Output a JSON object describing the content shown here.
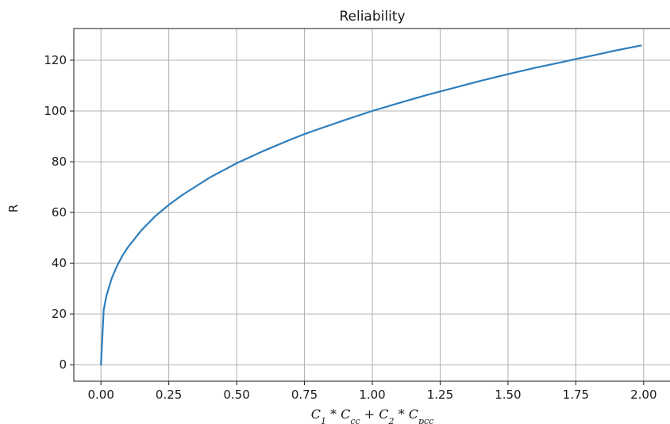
{
  "chart_data": {
    "type": "line",
    "title": "Reliability",
    "xlabel": "C_1 * C_cc + C_2 * C_pcc",
    "xlabel_parts": {
      "c1": "C",
      "c1_sub": "1",
      "op1": " * ",
      "ccc": "C",
      "ccc_sub": "cc",
      "op2": " + ",
      "c2": "C",
      "c2_sub": "2",
      "op3": " * ",
      "cpcc": "C",
      "cpcc_sub": "pcc"
    },
    "ylabel": "R",
    "xlim": [
      -0.1,
      2.1
    ],
    "ylim": [
      -6.5,
      132.5
    ],
    "xticks": [
      0.0,
      0.25,
      0.5,
      0.75,
      1.0,
      1.25,
      1.5,
      1.75,
      2.0
    ],
    "xtick_labels": [
      "0.00",
      "0.25",
      "0.50",
      "0.75",
      "1.00",
      "1.25",
      "1.50",
      "1.75",
      "2.00"
    ],
    "yticks": [
      0,
      20,
      40,
      60,
      80,
      100,
      120
    ],
    "ytick_labels": [
      "0",
      "20",
      "40",
      "60",
      "80",
      "100",
      "120"
    ],
    "grid": true,
    "series": [
      {
        "color": "#2e7ebc",
        "x": [
          0.0,
          0.01,
          0.02,
          0.04,
          0.06,
          0.08,
          0.1,
          0.15,
          0.2,
          0.25,
          0.3,
          0.4,
          0.5,
          0.6,
          0.7,
          0.75,
          0.8,
          0.9,
          1.0,
          1.1,
          1.2,
          1.25,
          1.3,
          1.4,
          1.5,
          1.6,
          1.7,
          1.75,
          1.8,
          1.9,
          1.99
        ],
        "y": [
          0,
          21.5,
          27.1,
          34.2,
          39.1,
          43.1,
          46.4,
          53.1,
          58.5,
          63.0,
          66.9,
          73.7,
          79.4,
          84.3,
          88.8,
          90.9,
          92.8,
          96.5,
          100.0,
          103.2,
          106.3,
          107.7,
          109.1,
          111.9,
          114.5,
          117.0,
          119.3,
          120.5,
          121.6,
          123.9,
          125.8
        ]
      }
    ]
  }
}
